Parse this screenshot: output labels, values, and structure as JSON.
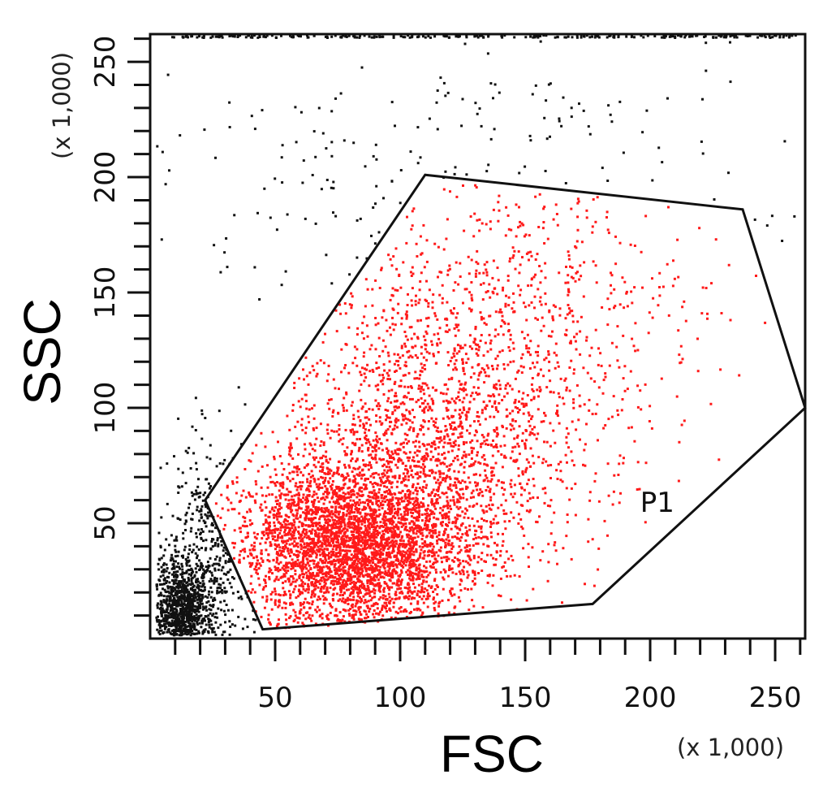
{
  "chart_data": {
    "type": "scatter",
    "title": "",
    "xlabel": "FSC",
    "ylabel": "SSC",
    "x_multiplier": "(x 1,000)",
    "y_multiplier": "(x 1,000)",
    "xlim": [
      0,
      262
    ],
    "ylim": [
      0,
      262
    ],
    "x_ticks": [
      50,
      100,
      150,
      200,
      250
    ],
    "y_ticks": [
      50,
      100,
      150,
      200,
      250
    ],
    "x_minor_step": 10,
    "y_minor_step": 10,
    "grid": false,
    "gate": {
      "name": "P1",
      "vertices": [
        [
          22,
          60
        ],
        [
          110,
          201
        ],
        [
          237,
          186
        ],
        [
          262,
          100
        ],
        [
          177,
          15
        ],
        [
          45,
          4
        ]
      ]
    },
    "colors": {
      "in_gate": "#ff1a1a",
      "out_gate": "#111111",
      "gate_line": "#111111",
      "axes": "#111111"
    },
    "series": [
      {
        "subset": "out_gate",
        "color": "#111111",
        "approx_count": 1400,
        "clusters": [
          {
            "cx": 12,
            "cy": 12,
            "sx": 6,
            "sy": 12,
            "weight": 0.6
          },
          {
            "cx": 25,
            "cy": 35,
            "sx": 10,
            "sy": 25,
            "weight": 0.25
          },
          {
            "cx": 130,
            "cy": 200,
            "sx": 70,
            "sy": 35,
            "weight": 0.15
          }
        ]
      },
      {
        "subset": "in_gate",
        "color": "#ff1a1a",
        "approx_count": 6000,
        "clusters": [
          {
            "cx": 80,
            "cy": 40,
            "sx": 22,
            "sy": 18,
            "weight": 0.55
          },
          {
            "cx": 110,
            "cy": 80,
            "sx": 30,
            "sy": 35,
            "weight": 0.35
          },
          {
            "cx": 150,
            "cy": 140,
            "sx": 35,
            "sy": 35,
            "weight": 0.1
          }
        ]
      }
    ]
  }
}
